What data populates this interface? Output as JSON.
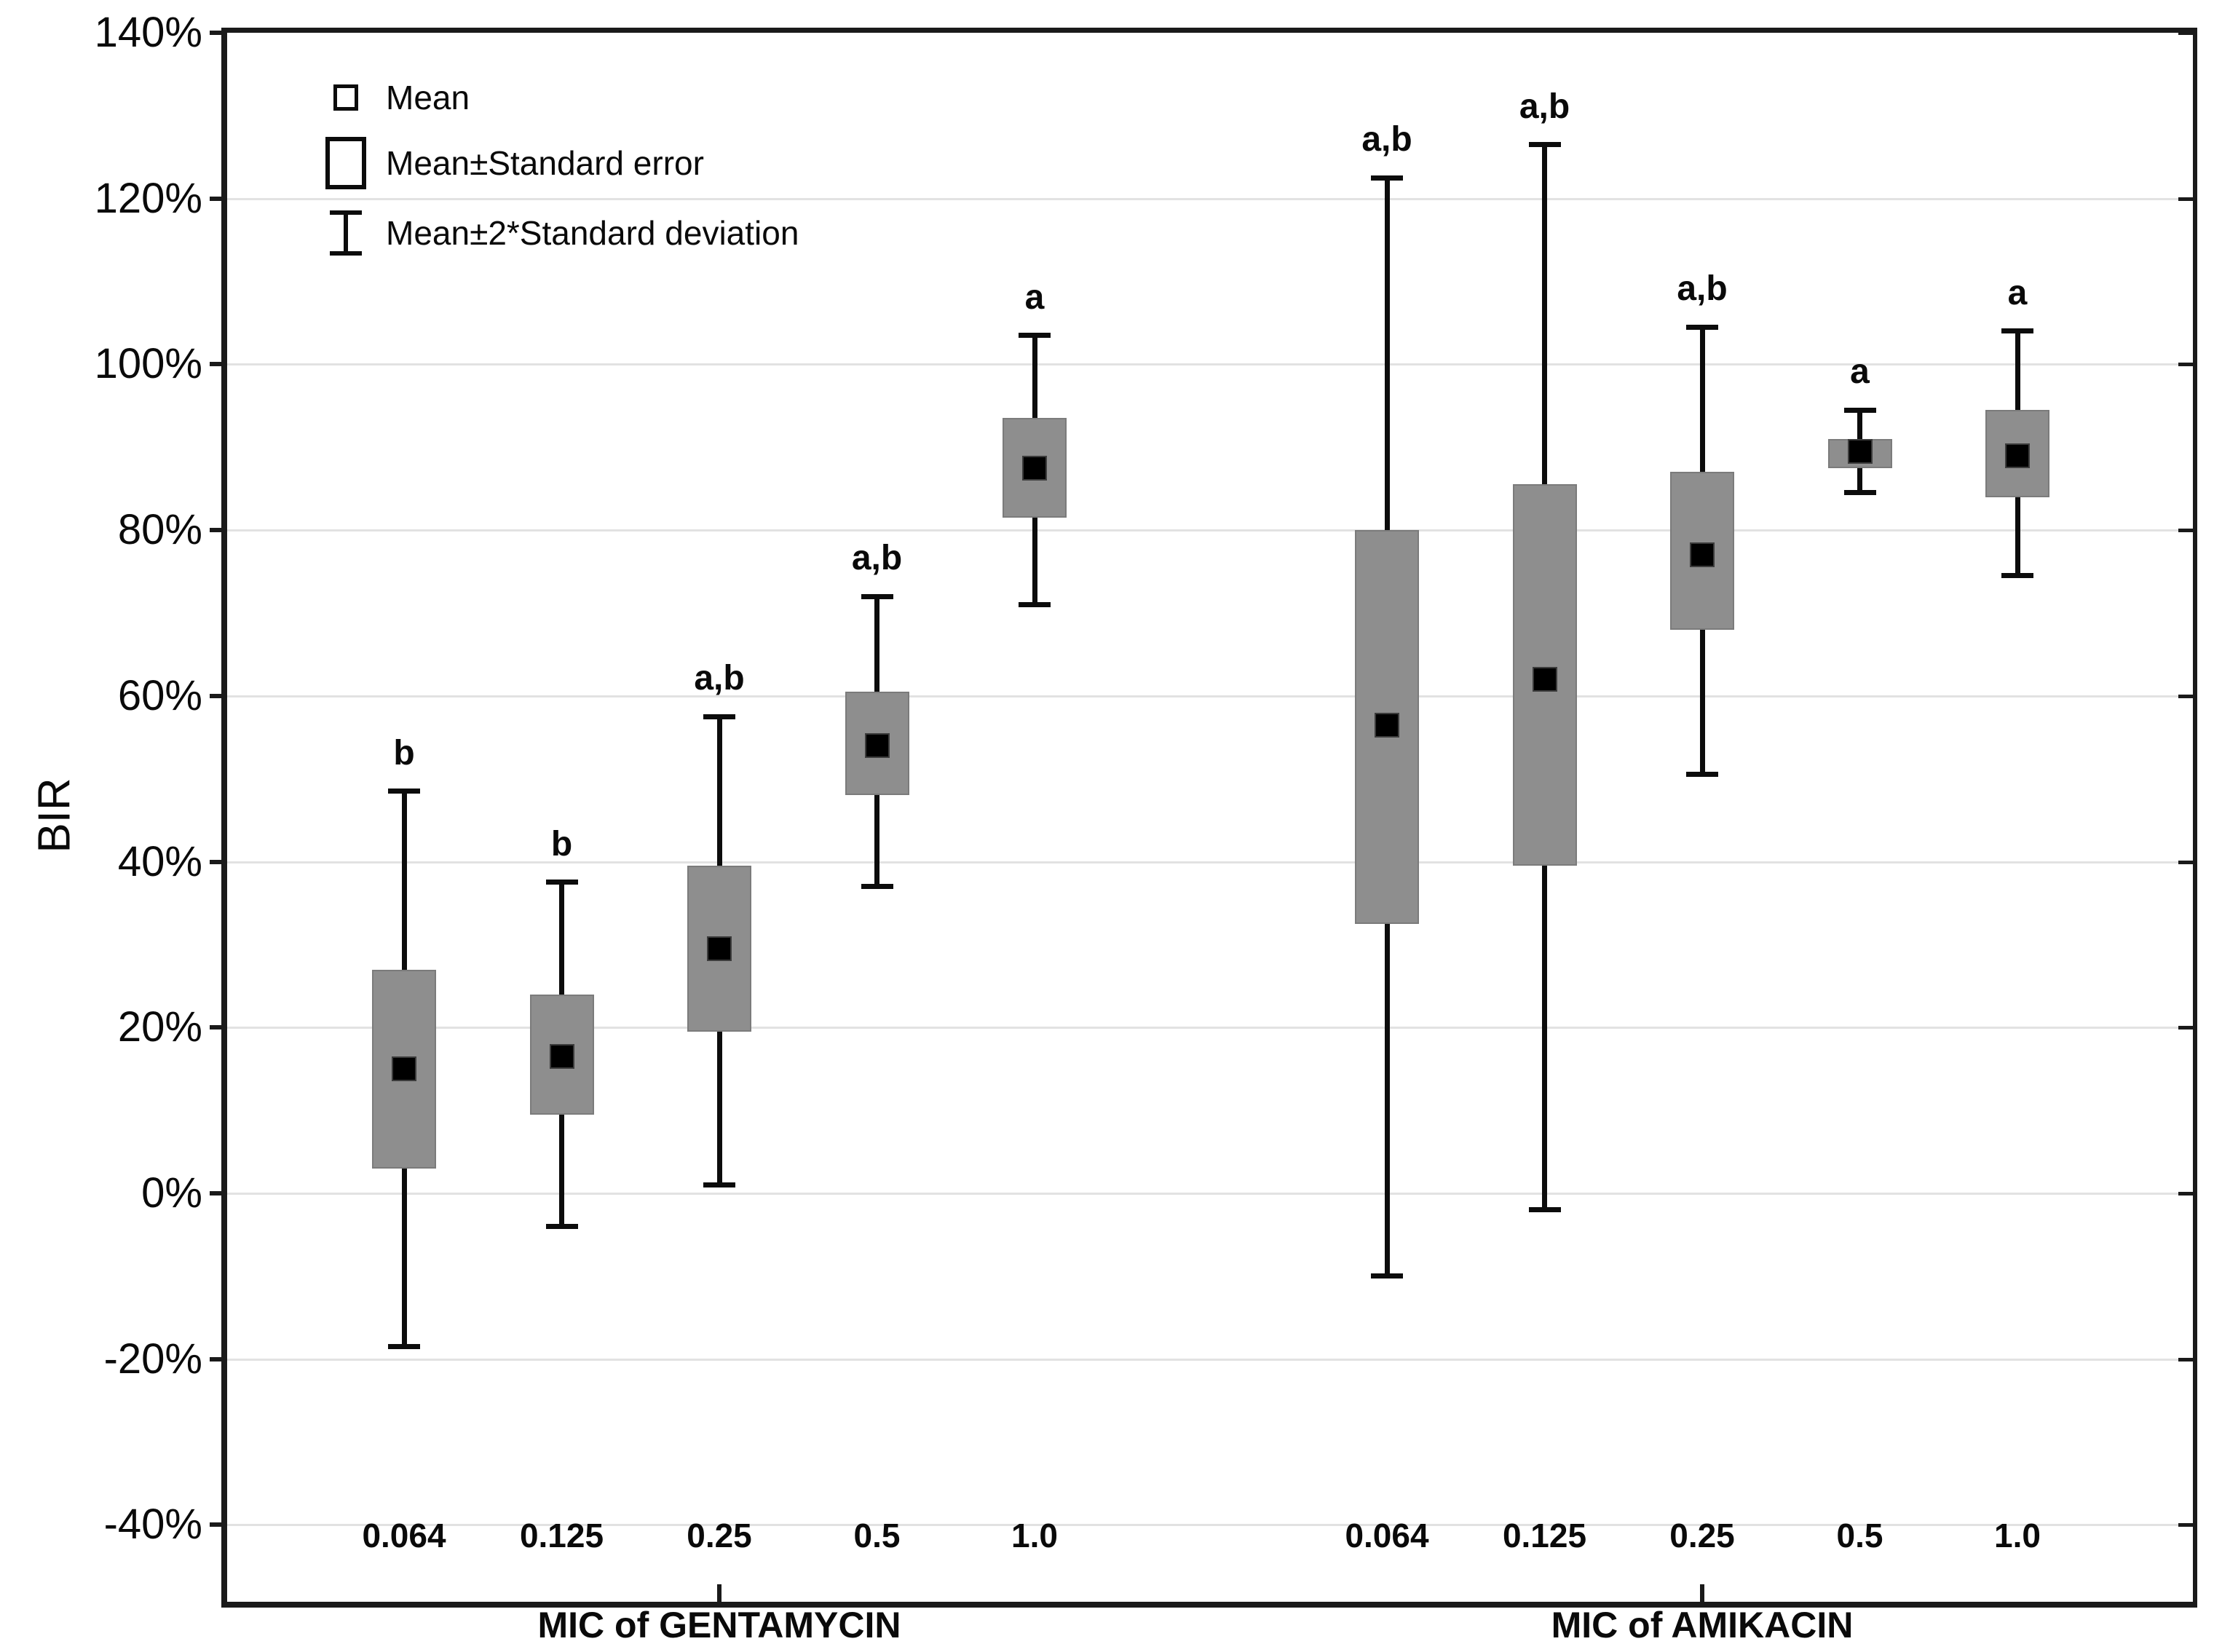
{
  "y_axis": {
    "label": "BIR",
    "unit": "%",
    "min": -49.4,
    "max": 140,
    "gridline_step": 20,
    "ticks": [
      {
        "label": "140%",
        "value": 140
      },
      {
        "label": "120%",
        "value": 120
      },
      {
        "label": "100%",
        "value": 100
      },
      {
        "label": "80%",
        "value": 80
      },
      {
        "label": "60%",
        "value": 60
      },
      {
        "label": "40%",
        "value": 40
      },
      {
        "label": "20%",
        "value": 20
      },
      {
        "label": "0%",
        "value": 0
      },
      {
        "label": "-20%",
        "value": -20
      },
      {
        "label": "-40%",
        "value": -40
      }
    ]
  },
  "x_axis": {
    "groups": [
      {
        "title": "MIC of GENTAMYCIN"
      },
      {
        "title": "MIC of AMIKACIN"
      }
    ]
  },
  "legend": {
    "items": [
      {
        "symbol": "mean-square-icon",
        "label": "Mean"
      },
      {
        "symbol": "se-box-icon",
        "label": "Mean±Standard error"
      },
      {
        "symbol": "sd-whisker-icon",
        "label": "Mean±2*Standard deviation"
      }
    ]
  },
  "colors": {
    "box_fill": "#8e8e8e",
    "box_edge": "#7b7b7b",
    "mean_marker": "#000000",
    "whisker": "#0c0c0c",
    "gridline": "#e2e2e2",
    "axis": "#1a1a1a",
    "background": "#ffffff"
  },
  "chart_data": {
    "type": "box",
    "ylabel": "BIR",
    "unit": "percent",
    "ylim": [
      -49.4,
      140
    ],
    "grid": "horizontal",
    "legend_position": "top-left-inside",
    "whisker_definition": "Mean±2*Standard deviation",
    "box_definition": "Mean±Standard error",
    "groups": [
      {
        "title": "MIC of GENTAMYCIN",
        "categories": [
          "0.064",
          "0.125",
          "0.25",
          "0.5",
          "1.0"
        ],
        "boxes": [
          {
            "mic": "0.064",
            "mean": 15,
            "se_low": 3,
            "se_high": 27,
            "sd_low": -18.5,
            "sd_high": 48.5,
            "sig": "b"
          },
          {
            "mic": "0.125",
            "mean": 16.5,
            "se_low": 9.5,
            "se_high": 24,
            "sd_low": -4,
            "sd_high": 37.5,
            "sig": "b"
          },
          {
            "mic": "0.25",
            "mean": 29.5,
            "se_low": 19.5,
            "se_high": 39.5,
            "sd_low": 1,
            "sd_high": 57.5,
            "sig": "a,b"
          },
          {
            "mic": "0.5",
            "mean": 54,
            "se_low": 48,
            "se_high": 60.5,
            "sd_low": 37,
            "sd_high": 72,
            "sig": "a,b"
          },
          {
            "mic": "1.0",
            "mean": 87.5,
            "se_low": 81.5,
            "se_high": 93.5,
            "sd_low": 71,
            "sd_high": 103.5,
            "sig": "a"
          }
        ]
      },
      {
        "title": "MIC of AMIKACIN",
        "categories": [
          "0.064",
          "0.125",
          "0.25",
          "0.5",
          "1.0"
        ],
        "boxes": [
          {
            "mic": "0.064",
            "mean": 56.5,
            "se_low": 32.5,
            "se_high": 80,
            "sd_low": -10,
            "sd_high": 122.5,
            "sig": "a,b"
          },
          {
            "mic": "0.125",
            "mean": 62,
            "se_low": 39.5,
            "se_high": 85.5,
            "sd_low": -2,
            "sd_high": 126.5,
            "sig": "a,b"
          },
          {
            "mic": "0.25",
            "mean": 77,
            "se_low": 68,
            "se_high": 87,
            "sd_low": 50.5,
            "sd_high": 104.5,
            "sig": "a,b"
          },
          {
            "mic": "0.5",
            "mean": 89.5,
            "se_low": 87.5,
            "se_high": 91,
            "sd_low": 84.5,
            "sd_high": 94.5,
            "sig": "a"
          },
          {
            "mic": "1.0",
            "mean": 89,
            "se_low": 84,
            "se_high": 94.5,
            "sd_low": 74.5,
            "sd_high": 104,
            "sig": "a"
          }
        ]
      }
    ]
  }
}
